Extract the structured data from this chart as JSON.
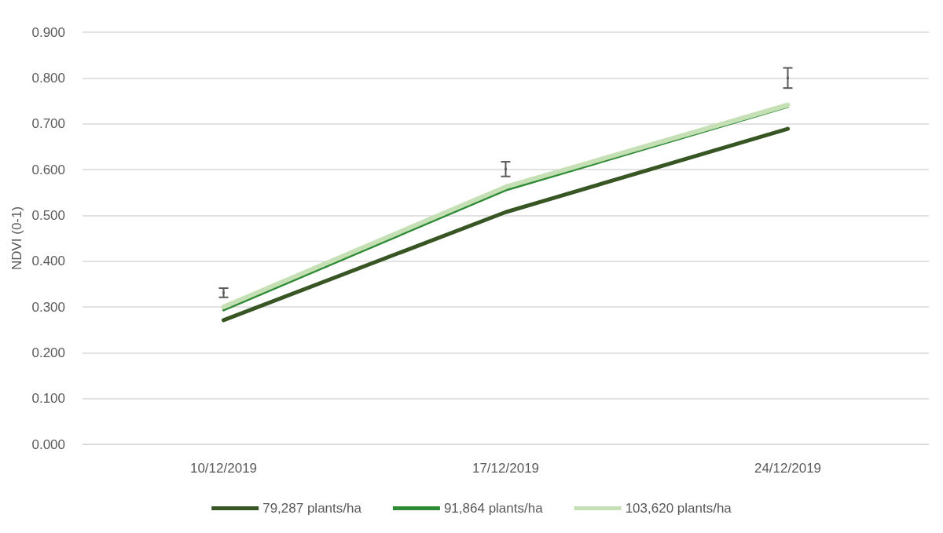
{
  "chart_data": {
    "type": "line",
    "ylabel": "NDVI (0-1)",
    "categories": [
      "10/12/2019",
      "17/12/2019",
      "24/12/2019"
    ],
    "ylim": [
      0,
      0.9
    ],
    "yticks": [
      {
        "value": 0,
        "label": "0.000"
      },
      {
        "value": 0.1,
        "label": "0.100"
      },
      {
        "value": 0.2,
        "label": "0.200"
      },
      {
        "value": 0.3,
        "label": "0.300"
      },
      {
        "value": 0.4,
        "label": "0.400"
      },
      {
        "value": 0.5,
        "label": "0.500"
      },
      {
        "value": 0.6,
        "label": "0.600"
      },
      {
        "value": 0.7,
        "label": "0.700"
      },
      {
        "value": 0.8,
        "label": "0.800"
      },
      {
        "value": 0.9,
        "label": "0.900"
      }
    ],
    "grid": "y",
    "legend": "bottom",
    "marker": "none",
    "line_style": "solid",
    "series": [
      {
        "name": "79,287 plants/ha",
        "color": "#375623",
        "values": [
          0.271,
          0.507,
          0.689
        ]
      },
      {
        "name": "91,864 plants/ha",
        "color": "#2e8b35",
        "values": [
          0.293,
          0.555,
          0.737
        ]
      },
      {
        "name": "103,620 plants/ha",
        "color": "#c5e0b4",
        "values": [
          0.3,
          0.562,
          0.741
        ]
      },
      {
        "type": "scatter",
        "marker": "square",
        "color": "#595959",
        "values": [
          0.331,
          0.601,
          0.8
        ],
        "errors": [
          0.01,
          0.016,
          0.022
        ]
      }
    ]
  }
}
